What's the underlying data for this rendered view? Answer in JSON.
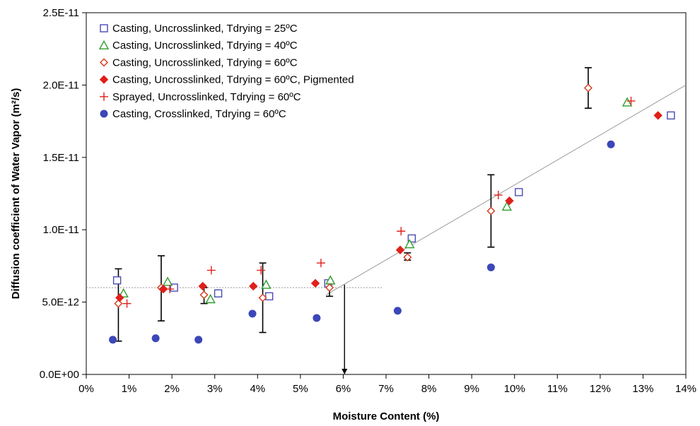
{
  "chart_data": {
    "type": "scatter",
    "xlabel": "Moisture Content (%)",
    "ylabel": "Diffusion coefficient of Water Vapor (m²/s)",
    "xlim": [
      0,
      14
    ],
    "ylim": [
      0,
      2.5e-11
    ],
    "x_ticks": [
      0,
      1,
      2,
      3,
      4,
      5,
      6,
      7,
      8,
      9,
      10,
      11,
      12,
      13,
      14
    ],
    "x_tick_labels": [
      "0%",
      "1%",
      "2%",
      "3%",
      "4%",
      "5%",
      "6%",
      "7%",
      "8%",
      "9%",
      "10%",
      "11%",
      "12%",
      "13%",
      "14%"
    ],
    "y_ticks": [
      0,
      5e-12,
      1e-11,
      1.5e-11,
      2e-11,
      2.5e-11
    ],
    "y_tick_labels": [
      "0.0E+00",
      "5.0E-12",
      "1.0E-11",
      "1.5E-11",
      "2.0E-11",
      "2.5E-11"
    ],
    "grid": false,
    "legend_position": "top-left",
    "series": [
      {
        "name": "Casting, Uncrosslinked, Tdrying = 25ºC",
        "marker": "square-open",
        "color": "#4a4ab3",
        "points": [
          [
            0.72,
            6.5e-12
          ],
          [
            2.05,
            6e-12
          ],
          [
            3.08,
            5.6e-12
          ],
          [
            4.27,
            5.4e-12
          ],
          [
            5.65,
            6.3e-12
          ],
          [
            7.6,
            9.4e-12
          ],
          [
            10.1,
            1.26e-11
          ],
          [
            13.65,
            1.79e-11
          ]
        ]
      },
      {
        "name": "Casting, Uncrosslinked, Tdrying = 40ºC",
        "marker": "triangle-open",
        "color": "#2e9e2e",
        "points": [
          [
            0.87,
            5.6e-12
          ],
          [
            1.9,
            6.4e-12
          ],
          [
            2.9,
            5.2e-12
          ],
          [
            4.2,
            6.2e-12
          ],
          [
            5.7,
            6.5e-12
          ],
          [
            7.55,
            9e-12
          ],
          [
            9.82,
            1.16e-11
          ],
          [
            12.63,
            1.88e-11
          ]
        ]
      },
      {
        "name": "Casting, Uncrosslinked, Tdrying = 60ºC",
        "marker": "diamond-open",
        "color": "#d43a1a",
        "points": [
          [
            0.75,
            4.9e-12
          ],
          [
            1.75,
            6e-12
          ],
          [
            2.75,
            5.5e-12
          ],
          [
            4.12,
            5.3e-12
          ],
          [
            5.68,
            6e-12
          ],
          [
            7.5,
            8.1e-12
          ],
          [
            9.45,
            1.13e-11
          ],
          [
            11.72,
            1.98e-11
          ]
        ]
      },
      {
        "name": "Casting, Uncrosslinked, Tdrying = 60ºC, Pigmented",
        "marker": "diamond-filled",
        "color": "#e0201a",
        "points": [
          [
            0.78,
            5.3e-12
          ],
          [
            1.8,
            5.9e-12
          ],
          [
            2.72,
            6.1e-12
          ],
          [
            3.9,
            6.1e-12
          ],
          [
            5.35,
            6.3e-12
          ],
          [
            7.33,
            8.6e-12
          ],
          [
            9.88,
            1.2e-11
          ],
          [
            13.35,
            1.79e-11
          ]
        ]
      },
      {
        "name": "Sprayed, Uncrosslinked, Tdrying = 60ºC",
        "marker": "plus",
        "color": "#e0201a",
        "points": [
          [
            0.95,
            4.9e-12
          ],
          [
            1.95,
            5.9e-12
          ],
          [
            2.92,
            7.2e-12
          ],
          [
            4.08,
            7.2e-12
          ],
          [
            5.48,
            7.7e-12
          ],
          [
            7.35,
            9.9e-12
          ],
          [
            9.62,
            1.24e-11
          ],
          [
            12.72,
            1.89e-11
          ]
        ]
      },
      {
        "name": "Casting, Crosslinked, Tdrying = 60ºC",
        "marker": "circle-filled",
        "color": "#3c47b8",
        "points": [
          [
            0.62,
            2.4e-12
          ],
          [
            1.62,
            2.5e-12
          ],
          [
            2.62,
            2.4e-12
          ],
          [
            3.88,
            4.2e-12
          ],
          [
            5.38,
            3.9e-12
          ],
          [
            7.27,
            4.4e-12
          ],
          [
            9.45,
            7.4e-12
          ],
          [
            12.25,
            1.59e-11
          ]
        ]
      }
    ],
    "error_bars": [
      {
        "x": 0.75,
        "low": 2.3e-12,
        "high": 7.3e-12
      },
      {
        "x": 1.75,
        "low": 3.7e-12,
        "high": 8.2e-12
      },
      {
        "x": 2.75,
        "low": 4.9e-12,
        "high": 6e-12
      },
      {
        "x": 4.12,
        "low": 2.9e-12,
        "high": 7.7e-12
      },
      {
        "x": 5.68,
        "low": 5.4e-12,
        "high": 6.5e-12
      },
      {
        "x": 7.5,
        "low": 7.9e-12,
        "high": 8.4e-12
      },
      {
        "x": 9.45,
        "low": 8.8e-12,
        "high": 1.38e-11
      },
      {
        "x": 11.72,
        "low": 1.84e-11,
        "high": 2.12e-11
      }
    ],
    "trend_lines": [
      {
        "style": "dashed-horizontal",
        "from": [
          0,
          6e-12
        ],
        "to": [
          6.9,
          6e-12
        ],
        "color": "#999999"
      },
      {
        "style": "solid",
        "from": [
          5.6,
          5.5e-12
        ],
        "to": [
          14,
          2e-11
        ],
        "color": "#999999"
      }
    ],
    "annotation_arrow": {
      "x": 6.03,
      "from_y": 6.2e-12,
      "to_y": 0
    }
  }
}
